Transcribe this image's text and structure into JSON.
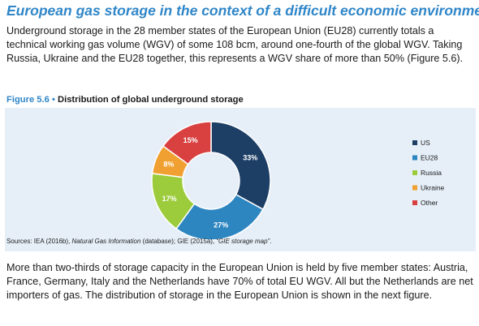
{
  "document": {
    "heading": "European gas storage in the context of a difficult economic environment",
    "paragraph1": "Underground storage in the 28 member states of the European Union (EU28) currently totals a technical working gas volume (WGV) of some 108 bcm, around one-fourth of the global WGV. Taking Russia, Ukraine and the EU28 together, this represents a WGV share of more than 50% (Figure 5.6).",
    "figure_number": "Figure 5.6",
    "figure_separator": "•",
    "figure_title": "Distribution of global underground storage",
    "sources_prefix": "Sources: IEA (2016b), ",
    "sources_italic": "Natural Gas Information",
    "sources_suffix": " (database); GIE (2015a), ",
    "sources_quoted": "“GIE storage map”",
    "sources_end": ".",
    "paragraph2": "More than two-thirds of storage capacity in the European Union is held by five member states: Austria, France, Germany, Italy and the Netherlands have 70% of total EU WGV. All but the Netherlands are net importers of gas. The distribution of storage in the European Union is shown in the next figure."
  },
  "chart_data": {
    "type": "pie",
    "style": "donut",
    "categories": [
      "US",
      "EU28",
      "Russia",
      "Ukraine",
      "Other"
    ],
    "values": [
      33,
      27,
      17,
      8,
      15
    ],
    "data_labels": [
      "33%",
      "27%",
      "17%",
      "8%",
      "15%"
    ],
    "colors": [
      "#1d3f66",
      "#2e86c1",
      "#9ccc3c",
      "#f0a030",
      "#d94040"
    ],
    "legend_position": "right"
  }
}
